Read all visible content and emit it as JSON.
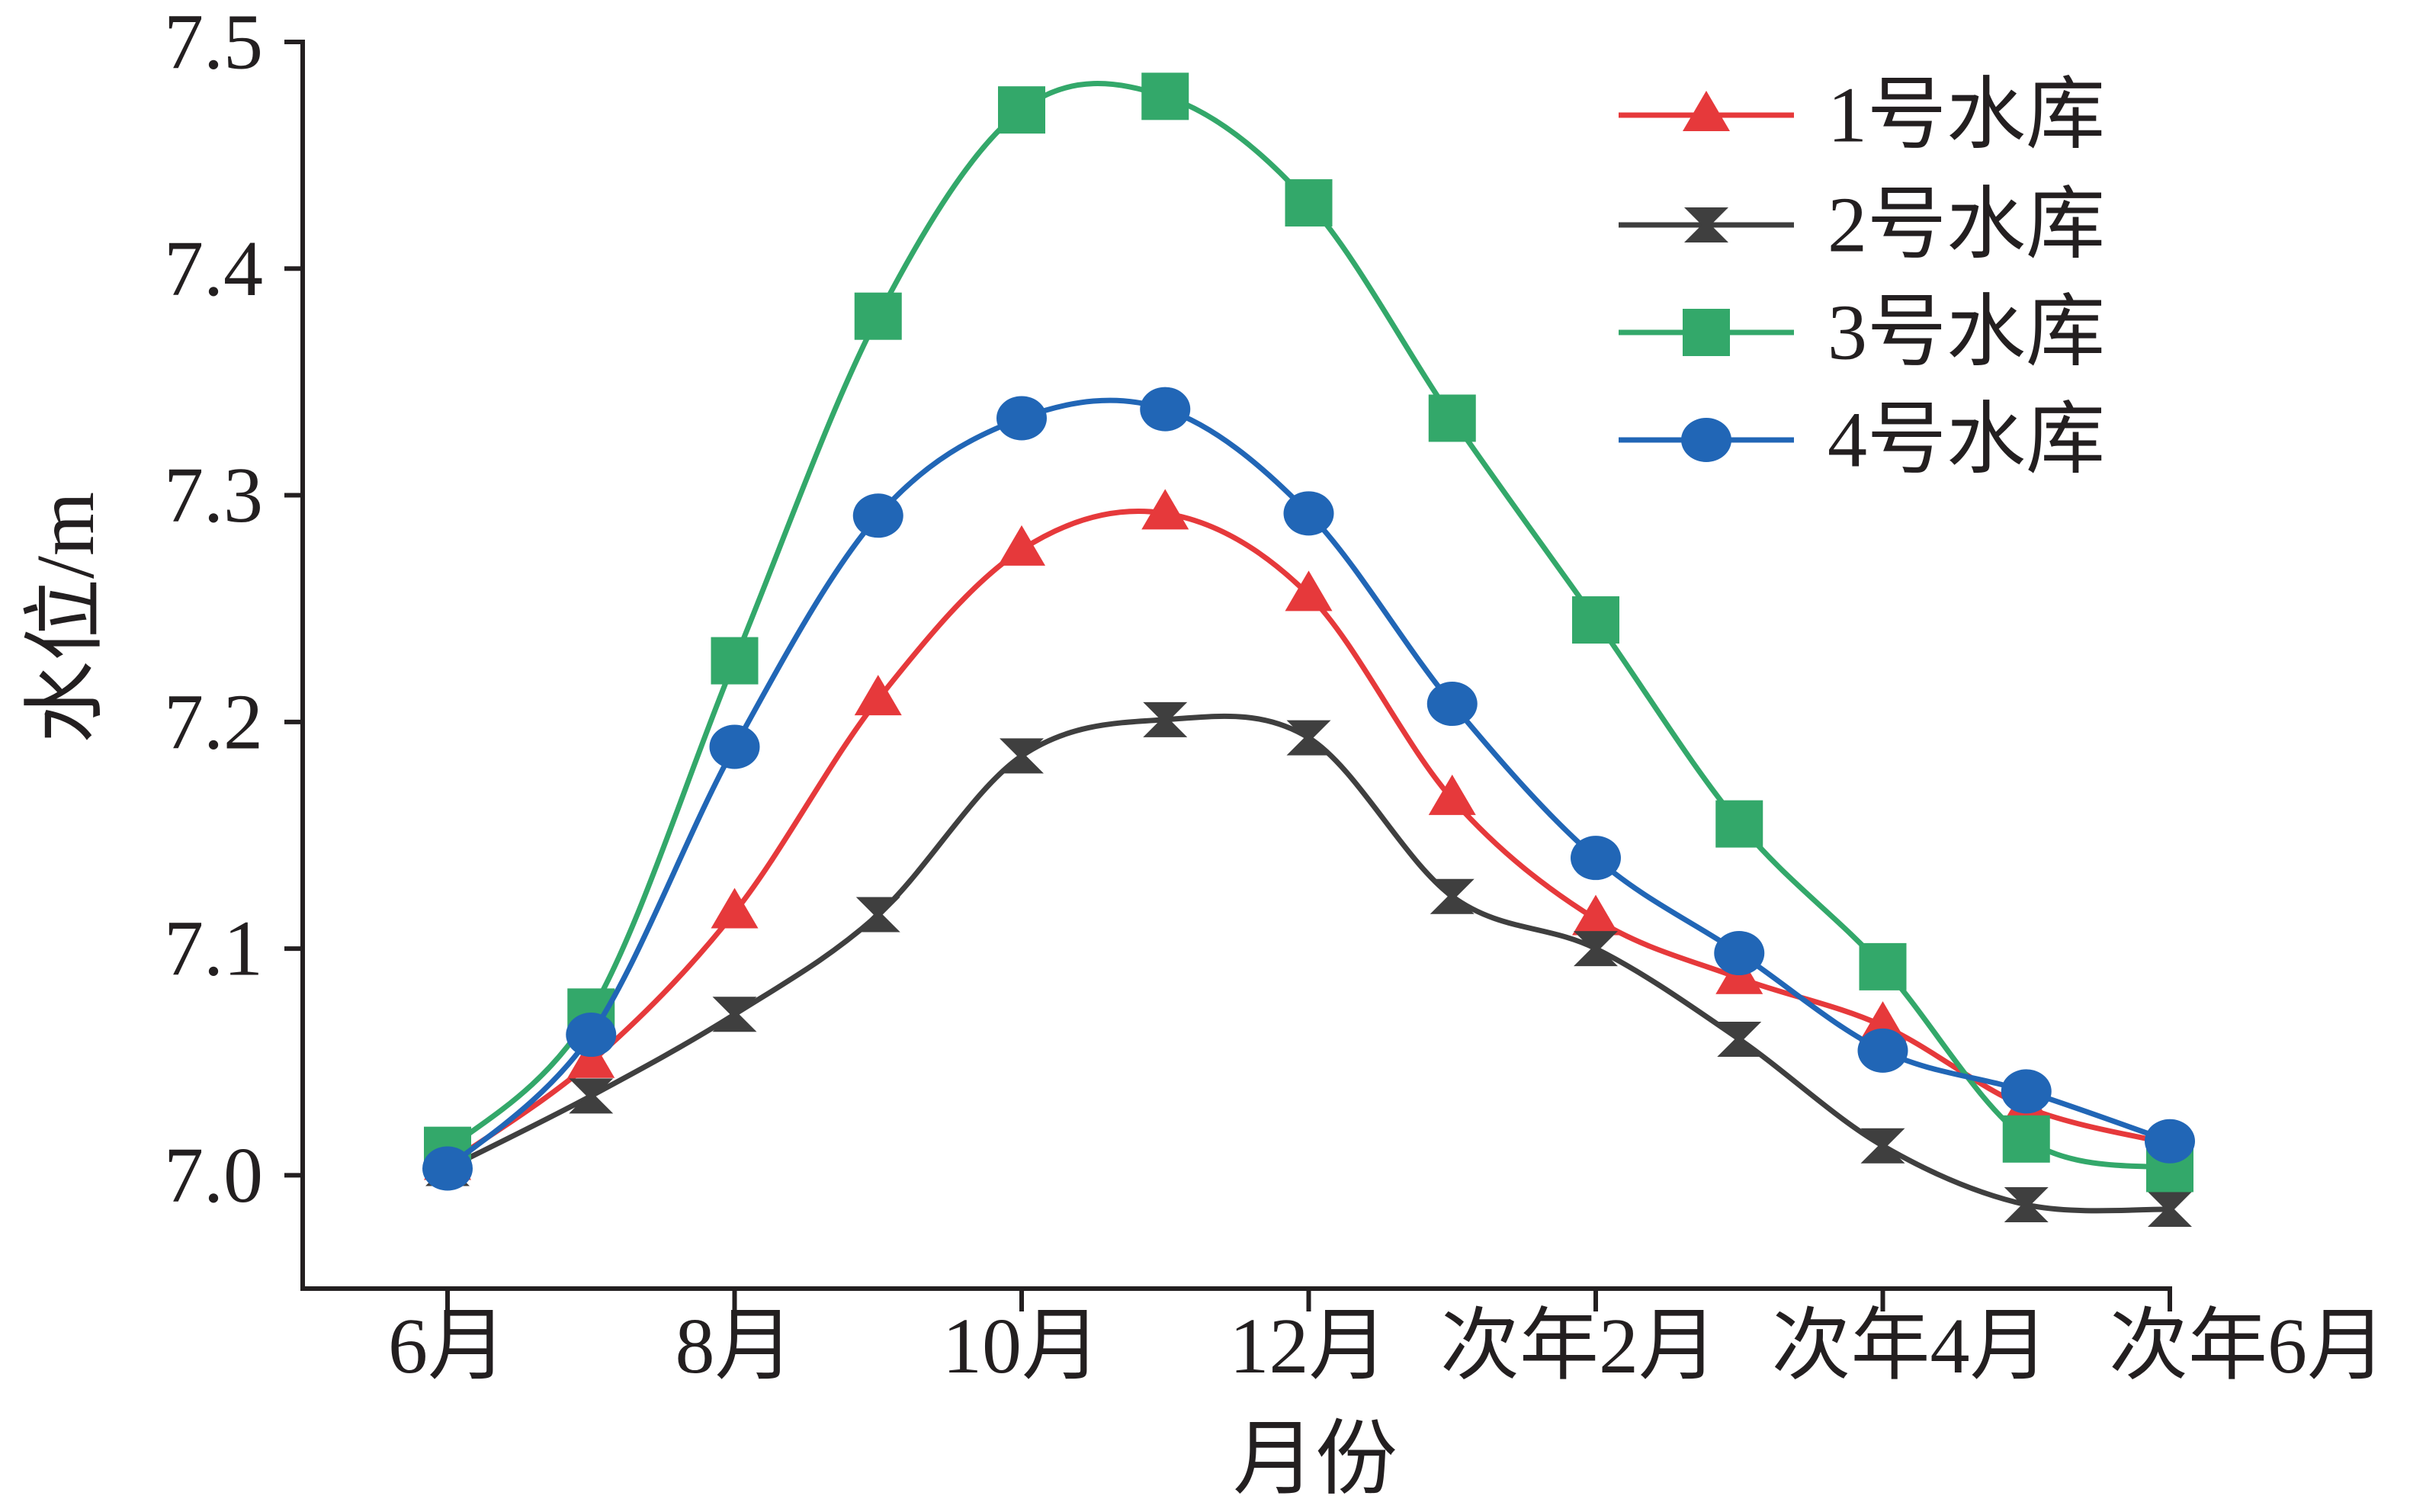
{
  "chart_data": {
    "type": "line",
    "xlabel": "月份",
    "ylabel": "水位/m",
    "x_tick_labels": [
      "6月",
      "8月",
      "10月",
      "12月",
      "次年2月",
      "次年4月",
      "次年6月"
    ],
    "y_tick_labels": [
      "7.0",
      "7.1",
      "7.2",
      "7.3",
      "7.4",
      "7.5"
    ],
    "ylim": [
      6.95,
      7.5
    ],
    "grid": false,
    "smooth": true,
    "legend_position": "top-right",
    "series": [
      {
        "name": "1号水库",
        "color": "#e6393b",
        "marker": "triangle",
        "values": [
          7.005,
          7.05,
          7.116,
          7.21,
          7.276,
          7.292,
          7.256,
          7.166,
          7.113,
          7.087,
          7.066,
          7.03,
          7.014
        ]
      },
      {
        "name": "2号水库",
        "color": "#3f3f3f",
        "marker": "hourglass",
        "values": [
          7.003,
          7.035,
          7.071,
          7.115,
          7.185,
          7.201,
          7.193,
          7.123,
          7.1,
          7.06,
          7.013,
          6.987,
          6.985
        ]
      },
      {
        "name": "3号水库",
        "color": "#33a86a",
        "marker": "square",
        "values": [
          7.011,
          7.072,
          7.227,
          7.379,
          7.47,
          7.476,
          7.429,
          7.334,
          7.245,
          7.155,
          7.092,
          7.016,
          7.003
        ]
      },
      {
        "name": "4号水库",
        "color": "#2166b6",
        "marker": "circle",
        "values": [
          7.003,
          7.062,
          7.189,
          7.291,
          7.334,
          7.338,
          7.292,
          7.208,
          7.14,
          7.098,
          7.055,
          7.037,
          7.015
        ]
      }
    ]
  }
}
